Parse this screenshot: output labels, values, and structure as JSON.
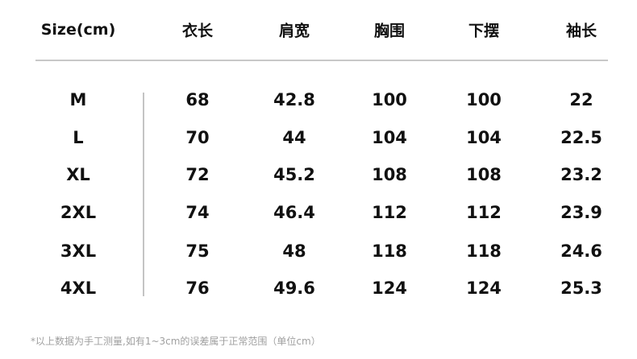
{
  "headers": [
    "Size(cm)",
    "衣长",
    "肩宽",
    "胸围",
    "下摆",
    "袖长"
  ],
  "rows": [
    [
      "M",
      "68",
      "42.8",
      "100",
      "100",
      "22"
    ],
    [
      "L",
      "70",
      "44",
      "104",
      "104",
      "22.5"
    ],
    [
      "XL",
      "72",
      "45.2",
      "108",
      "108",
      "23.2"
    ],
    [
      "2XL",
      "74",
      "46.4",
      "112",
      "112",
      "23.9"
    ],
    [
      "3XL",
      "75",
      "48",
      "118",
      "118",
      "24.6"
    ],
    [
      "4XL",
      "76",
      "49.6",
      "124",
      "124",
      "25.3"
    ]
  ],
  "note": "*以上数据为手工测量,如有1~3cm的误差属于正常范围（单位cm）"
}
